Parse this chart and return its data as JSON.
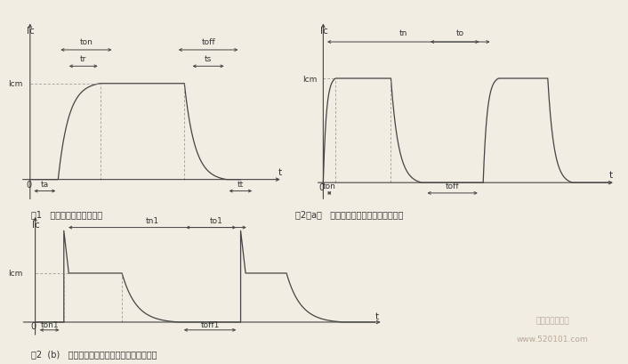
{
  "fig1": {
    "title_cn": "图1   开关管输出电流波形图",
    "ylabel": "Ic",
    "xlabel": "t",
    "Icm_label": "Icm",
    "ton": "ton",
    "tr": "tr",
    "toff": "toff",
    "ts": "ts",
    "ta": "ta",
    "tt": "tt"
  },
  "fig2a": {
    "title_cn": "图2（a）   开关管正常激励下的电流波形图",
    "ylabel": "Ic",
    "xlabel": "t",
    "Icm_label": "Icm",
    "tn": "tn",
    "to": "to",
    "ton": "ton",
    "toff": "toff"
  },
  "fig2b": {
    "title_cn": "图2  (b)   开关管欠激励或过激励下的电流波形图",
    "ylabel": "Ic",
    "xlabel": "t",
    "Icm_label": "Icm",
    "tn1": "tn1",
    "to1": "to1",
    "ton1": "ton1",
    "toff1": "toff1"
  },
  "line_color": "#444444",
  "bg_color": "#f2ede3",
  "text_color": "#333333",
  "dashed_color": "#888888",
  "watermark1": "家电维修资料网",
  "watermark2": "www.520101.com",
  "watermark_color": "#b8a898"
}
